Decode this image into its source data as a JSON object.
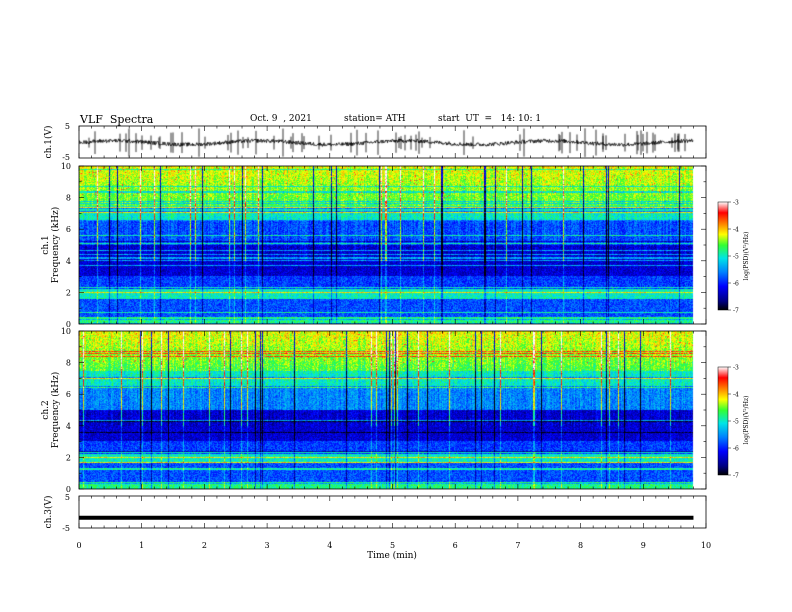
{
  "header": {
    "title": "VLF  Spectra",
    "date": "Oct. 9  , 2021",
    "station": "station= ATH",
    "start": "start  UT  =   14: 10: 1"
  },
  "chart_data": [
    {
      "type": "line",
      "panel": "ch1-waveform",
      "ylabel": "ch.1(V)",
      "ylim": [
        -5,
        5
      ],
      "yticks": [
        "5",
        "-5"
      ],
      "xlim": [
        0,
        10
      ],
      "baseline": -0.2,
      "color": "#000000"
    },
    {
      "type": "heatmap",
      "panel": "ch1-spectrogram",
      "ylabel_line1": "ch.1",
      "ylabel_line2": "Frequency  (kHz)",
      "ylim": [
        0,
        10
      ],
      "yticks": [
        "0",
        "2",
        "4",
        "6",
        "8",
        "10"
      ],
      "xlim": [
        0,
        10
      ],
      "data_end_min": 9.8,
      "colorbar": {
        "label": "log(PSD)(V²/Hz)",
        "range": [
          -7,
          -3
        ],
        "ticks": [
          "-3",
          "-4",
          "-5",
          "-6",
          "-7"
        ]
      }
    },
    {
      "type": "heatmap",
      "panel": "ch2-spectrogram",
      "ylabel_line1": "ch.2",
      "ylabel_line2": "Frequency  (kHz)",
      "ylim": [
        0,
        10
      ],
      "yticks": [
        "0",
        "2",
        "4",
        "6",
        "8",
        "10"
      ],
      "xlim": [
        0,
        10
      ],
      "data_end_min": 9.8,
      "colorbar": {
        "label": "log(PSD)(V²/Hz)",
        "range": [
          -7,
          -3
        ],
        "ticks": [
          "-3",
          "-4",
          "-5",
          "-6",
          "-7"
        ]
      }
    },
    {
      "type": "line",
      "panel": "ch3-waveform",
      "ylabel": "ch.3(V)",
      "ylim": [
        -5,
        5
      ],
      "yticks": [
        "5",
        "-5"
      ],
      "xlim": [
        0,
        10
      ],
      "constant_value": -1.8,
      "color": "#000000"
    }
  ],
  "xaxis": {
    "label": "Time  (min)",
    "ticks": [
      "0",
      "1",
      "2",
      "3",
      "4",
      "5",
      "6",
      "7",
      "8",
      "9",
      "10"
    ]
  }
}
